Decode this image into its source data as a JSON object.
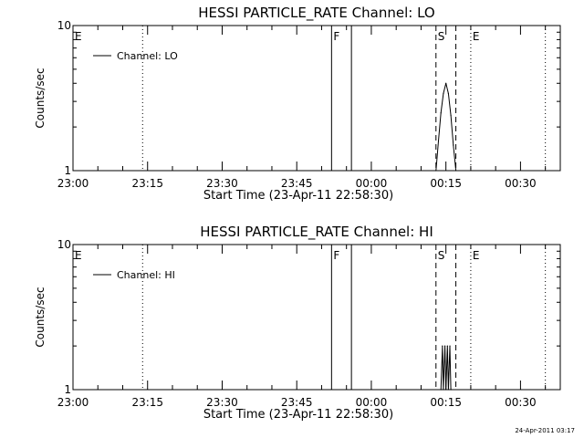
{
  "footer": {
    "timestamp": "24-Apr-2011 03:17"
  },
  "chart_data": [
    {
      "type": "line",
      "title": "HESSI PARTICLE_RATE Channel: LO",
      "xlabel": "Start Time (23-Apr-11 22:58:30)",
      "ylabel": "Counts/sec",
      "yscale": "log",
      "ylim": [
        1,
        10
      ],
      "ytick_labels": [
        "1",
        "10"
      ],
      "xlim": [
        "23:00",
        "00:38"
      ],
      "xtick_labels": [
        "23:00",
        "23:15",
        "23:30",
        "23:45",
        "00:00",
        "00:15",
        "00:30"
      ],
      "legend": {
        "placement": "top-left",
        "entries": [
          "Channel: LO"
        ]
      },
      "markers": [
        {
          "label": "E",
          "time": "23:00",
          "style": "dotted"
        },
        {
          "label": "",
          "time": "23:14",
          "style": "dotted"
        },
        {
          "label": "F",
          "time": "23:52",
          "style": "solid"
        },
        {
          "label": "",
          "time": "23:56",
          "style": "solid"
        },
        {
          "label": "S",
          "time": "00:13",
          "style": "dashed"
        },
        {
          "label": "",
          "time": "00:17",
          "style": "dashed"
        },
        {
          "label": "E",
          "time": "00:20",
          "style": "dotted"
        },
        {
          "label": "",
          "time": "00:35",
          "style": "dotted"
        }
      ],
      "series": [
        {
          "name": "Channel: LO",
          "x": [
            "00:13.0",
            "00:13.5",
            "00:14.0",
            "00:14.5",
            "00:15.0",
            "00:15.5",
            "00:16.0",
            "00:16.5",
            "00:17.0"
          ],
          "y": [
            1,
            1.6,
            2.5,
            3.4,
            4,
            3.4,
            2.4,
            1.5,
            1
          ]
        }
      ]
    },
    {
      "type": "line",
      "title": "HESSI PARTICLE_RATE Channel: HI",
      "xlabel": "Start Time (23-Apr-11 22:58:30)",
      "ylabel": "Counts/sec",
      "yscale": "log",
      "ylim": [
        1,
        10
      ],
      "ytick_labels": [
        "1",
        "10"
      ],
      "xlim": [
        "23:00",
        "00:38"
      ],
      "xtick_labels": [
        "23:00",
        "23:15",
        "23:30",
        "23:45",
        "00:00",
        "00:15",
        "00:30"
      ],
      "legend": {
        "placement": "top-left",
        "entries": [
          "Channel: HI"
        ]
      },
      "markers": [
        {
          "label": "E",
          "time": "23:00",
          "style": "dotted"
        },
        {
          "label": "",
          "time": "23:14",
          "style": "dotted"
        },
        {
          "label": "F",
          "time": "23:52",
          "style": "solid"
        },
        {
          "label": "",
          "time": "23:56",
          "style": "solid"
        },
        {
          "label": "S",
          "time": "00:13",
          "style": "dashed"
        },
        {
          "label": "",
          "time": "00:17",
          "style": "dashed"
        },
        {
          "label": "E",
          "time": "00:20",
          "style": "dotted"
        },
        {
          "label": "",
          "time": "00:35",
          "style": "dotted"
        }
      ],
      "series": [
        {
          "name": "Channel: HI",
          "x": [
            "00:14.0",
            "00:14.3",
            "00:14.5",
            "00:14.8",
            "00:15.0",
            "00:15.3",
            "00:15.5",
            "00:15.8",
            "00:16.0"
          ],
          "y": [
            1,
            2,
            1,
            2,
            1,
            2,
            1,
            2,
            1
          ]
        }
      ]
    }
  ]
}
